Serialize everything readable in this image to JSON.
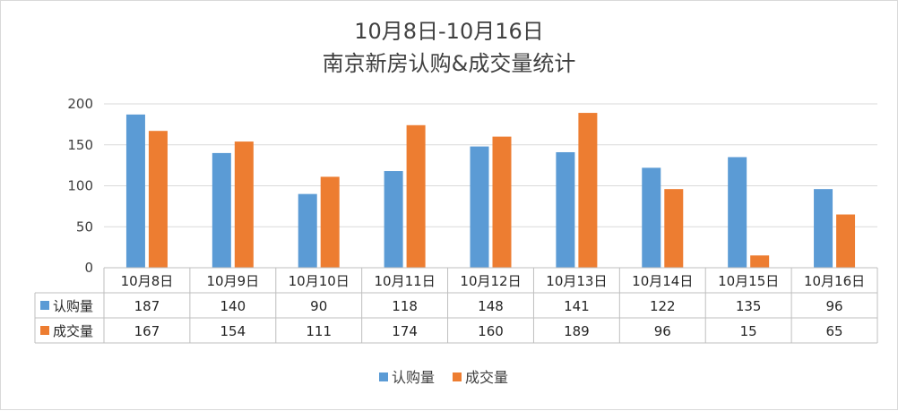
{
  "chart_data": {
    "type": "bar",
    "title": "10月8日-10月16日",
    "subtitle": "南京新房认购&成交量统计",
    "categories": [
      "10月8日",
      "10月9日",
      "10月10日",
      "10月11日",
      "10月12日",
      "10月13日",
      "10月14日",
      "10月15日",
      "10月16日"
    ],
    "series": [
      {
        "name": "认购量",
        "color": "#5B9BD5",
        "values": [
          187,
          140,
          90,
          118,
          148,
          141,
          122,
          135,
          96
        ]
      },
      {
        "name": "成交量",
        "color": "#ED7D31",
        "values": [
          167,
          154,
          111,
          174,
          160,
          189,
          96,
          15,
          65
        ]
      }
    ],
    "ylim": [
      0,
      200
    ],
    "yticks": [
      0,
      50,
      100,
      150,
      200
    ],
    "grid": true,
    "legend": "bottom",
    "data_table": true
  }
}
